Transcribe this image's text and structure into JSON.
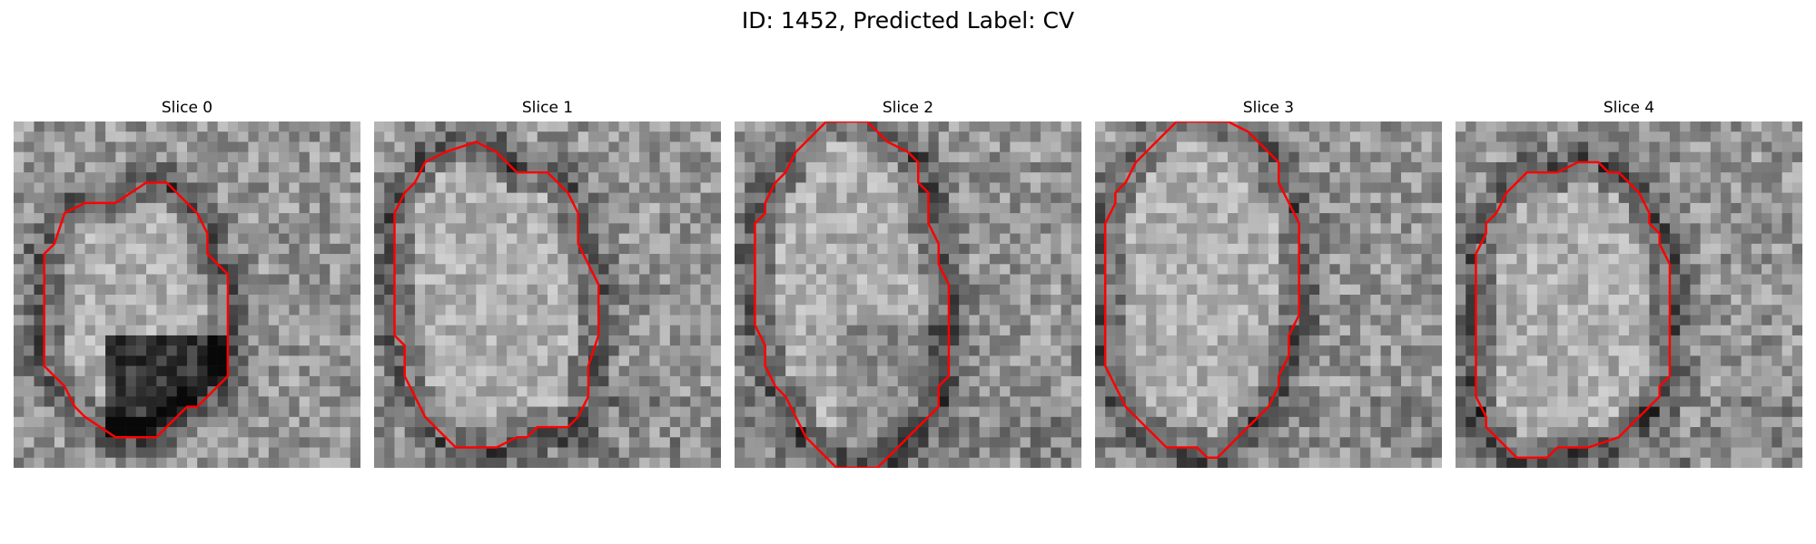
{
  "figure": {
    "title": "ID: 1452, Predicted Label: CV"
  },
  "contour_color": "#ff0000",
  "slices": [
    {
      "title": "Slice 0",
      "contour": [
        [
          15,
          6
        ],
        [
          13,
          6
        ],
        [
          10,
          8
        ],
        [
          7,
          8
        ],
        [
          5,
          9
        ],
        [
          4,
          12
        ],
        [
          3,
          13
        ],
        [
          3,
          24
        ],
        [
          5,
          26
        ],
        [
          6,
          28
        ],
        [
          7,
          29
        ],
        [
          10,
          31
        ],
        [
          14,
          31
        ],
        [
          15,
          30
        ],
        [
          16,
          29
        ],
        [
          17,
          28
        ],
        [
          18,
          28
        ],
        [
          20,
          26
        ],
        [
          21,
          25
        ],
        [
          21,
          15
        ],
        [
          19,
          13
        ],
        [
          19,
          11
        ],
        [
          18,
          9
        ],
        [
          17,
          8
        ]
      ]
    },
    {
      "title": "Slice 1",
      "contour": [
        [
          10,
          2
        ],
        [
          7,
          3
        ],
        [
          5,
          4
        ],
        [
          4,
          6
        ],
        [
          3,
          7
        ],
        [
          2,
          9
        ],
        [
          2,
          21
        ],
        [
          3,
          22
        ],
        [
          3,
          25
        ],
        [
          4,
          27
        ],
        [
          5,
          29
        ],
        [
          6,
          30
        ],
        [
          8,
          32
        ],
        [
          12,
          32
        ],
        [
          14,
          31
        ],
        [
          15,
          31
        ],
        [
          16,
          30
        ],
        [
          19,
          30
        ],
        [
          20,
          29
        ],
        [
          21,
          27
        ],
        [
          21,
          24
        ],
        [
          22,
          21
        ],
        [
          22,
          16
        ],
        [
          21,
          14
        ],
        [
          20,
          12
        ],
        [
          20,
          9
        ],
        [
          19,
          7
        ],
        [
          17,
          5
        ],
        [
          14,
          5
        ],
        [
          12,
          3
        ]
      ]
    },
    {
      "title": "Slice 2",
      "contour": [
        [
          9,
          0
        ],
        [
          8,
          1
        ],
        [
          6,
          3
        ],
        [
          5,
          5
        ],
        [
          4,
          6
        ],
        [
          3,
          8
        ],
        [
          3,
          9
        ],
        [
          2,
          10
        ],
        [
          2,
          20
        ],
        [
          3,
          22
        ],
        [
          3,
          24
        ],
        [
          4,
          26
        ],
        [
          5,
          27
        ],
        [
          6,
          29
        ],
        [
          7,
          31
        ],
        [
          8,
          32
        ],
        [
          9,
          33
        ],
        [
          10,
          34
        ],
        [
          14,
          34
        ],
        [
          15,
          33
        ],
        [
          16,
          32
        ],
        [
          17,
          31
        ],
        [
          18,
          30
        ],
        [
          19,
          29
        ],
        [
          20,
          28
        ],
        [
          20,
          26
        ],
        [
          21,
          25
        ],
        [
          21,
          16
        ],
        [
          20,
          14
        ],
        [
          20,
          12
        ],
        [
          19,
          10
        ],
        [
          19,
          7
        ],
        [
          18,
          6
        ],
        [
          18,
          4
        ],
        [
          17,
          3
        ],
        [
          15,
          2
        ],
        [
          14,
          1
        ],
        [
          13,
          0
        ]
      ]
    },
    {
      "title": "Slice 3",
      "contour": [
        [
          8,
          0
        ],
        [
          7,
          1
        ],
        [
          5,
          3
        ],
        [
          4,
          4
        ],
        [
          3,
          6
        ],
        [
          2,
          7
        ],
        [
          2,
          8
        ],
        [
          1,
          10
        ],
        [
          1,
          24
        ],
        [
          2,
          26
        ],
        [
          3,
          28
        ],
        [
          4,
          29
        ],
        [
          6,
          31
        ],
        [
          7,
          32
        ],
        [
          10,
          32
        ],
        [
          11,
          33
        ],
        [
          12,
          33
        ],
        [
          13,
          32
        ],
        [
          14,
          31
        ],
        [
          15,
          30
        ],
        [
          16,
          29
        ],
        [
          17,
          28
        ],
        [
          18,
          26
        ],
        [
          18,
          25
        ],
        [
          19,
          23
        ],
        [
          19,
          21
        ],
        [
          20,
          19
        ],
        [
          20,
          10
        ],
        [
          19,
          8
        ],
        [
          18,
          6
        ],
        [
          18,
          4
        ],
        [
          17,
          3
        ],
        [
          16,
          2
        ],
        [
          15,
          1
        ],
        [
          13,
          0
        ]
      ]
    },
    {
      "title": "Slice 4",
      "contour": [
        [
          14,
          4
        ],
        [
          12,
          4
        ],
        [
          10,
          5
        ],
        [
          7,
          5
        ],
        [
          6,
          6
        ],
        [
          5,
          7
        ],
        [
          4,
          9
        ],
        [
          3,
          10
        ],
        [
          3,
          11
        ],
        [
          2,
          13
        ],
        [
          2,
          27
        ],
        [
          3,
          29
        ],
        [
          3,
          30
        ],
        [
          4,
          31
        ],
        [
          5,
          32
        ],
        [
          6,
          33
        ],
        [
          9,
          33
        ],
        [
          10,
          32
        ],
        [
          13,
          32
        ],
        [
          16,
          31
        ],
        [
          17,
          30
        ],
        [
          18,
          29
        ],
        [
          19,
          28
        ],
        [
          20,
          27
        ],
        [
          20,
          26
        ],
        [
          21,
          25
        ],
        [
          21,
          14
        ],
        [
          20,
          12
        ],
        [
          20,
          11
        ],
        [
          19,
          10
        ],
        [
          19,
          9
        ],
        [
          18,
          7
        ],
        [
          17,
          6
        ],
        [
          16,
          5
        ],
        [
          15,
          5
        ]
      ]
    }
  ]
}
